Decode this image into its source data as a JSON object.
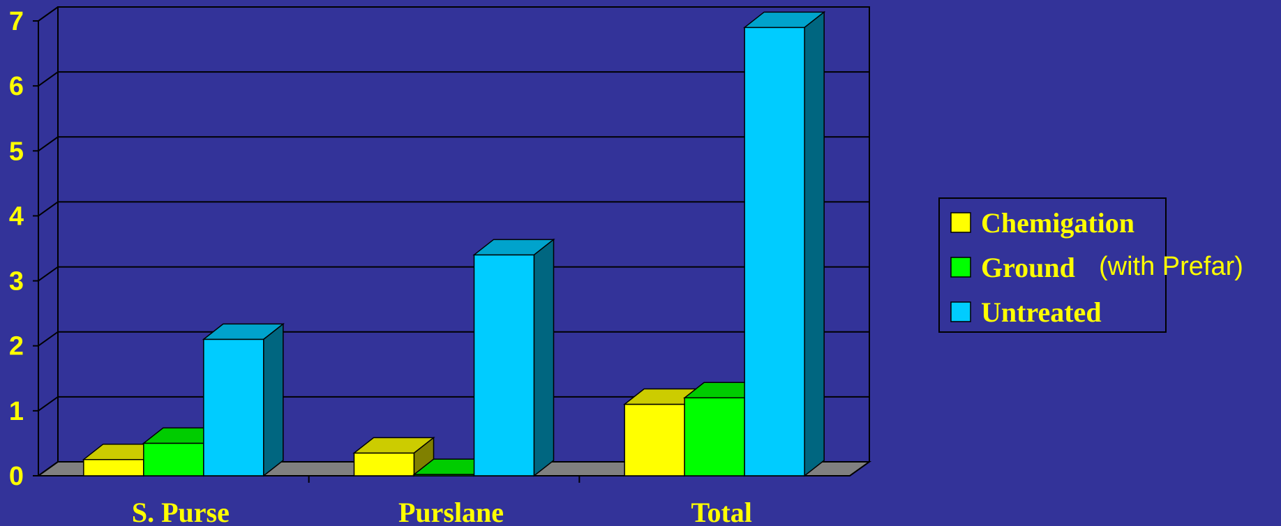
{
  "colors": {
    "background": "#333399",
    "text": "#ffff00",
    "floor": "#808080"
  },
  "annotation": "(with Prefar)",
  "chart_data": {
    "type": "bar",
    "style": "3d-clustered",
    "categories": [
      "S. Purse",
      "Purslane",
      "Total"
    ],
    "series": [
      {
        "name": "Chemigation",
        "color": "#ffff00",
        "values": [
          0.25,
          0.35,
          1.1
        ]
      },
      {
        "name": "Ground",
        "color": "#00ff00",
        "values": [
          0.5,
          0.02,
          1.2
        ]
      },
      {
        "name": "Untreated",
        "color": "#00ccff",
        "values": [
          2.1,
          3.4,
          6.9
        ]
      }
    ],
    "yticks": [
      "0",
      "1",
      "2",
      "3",
      "4",
      "5",
      "6",
      "7"
    ],
    "ylim": [
      0,
      7
    ],
    "grid": true,
    "legend": "right"
  }
}
